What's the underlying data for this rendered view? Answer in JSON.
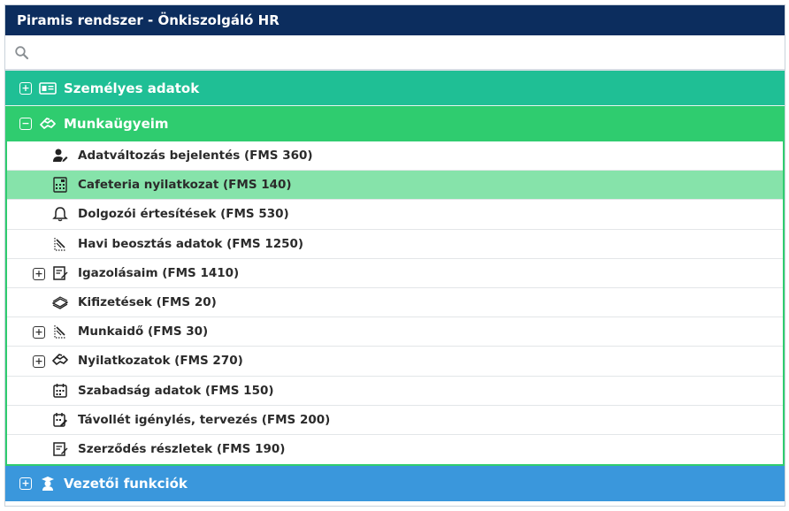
{
  "app": {
    "title": "Piramis rendszer - Önkiszolgáló HR"
  },
  "search": {
    "placeholder": ""
  },
  "groups": [
    {
      "label": "Személyes adatok",
      "toggle": "+",
      "icon": "id-card-icon"
    },
    {
      "label": "Munkaügyeim",
      "toggle": "−",
      "icon": "handshake-icon"
    },
    {
      "label": "Vezetői funkciók",
      "toggle": "+",
      "icon": "manager-icon"
    }
  ],
  "items": [
    {
      "label": "Adatváltozás bejelentés (FMS 360)",
      "icon": "user-edit-icon"
    },
    {
      "label": "Cafeteria nyilatkozat (FMS 140)",
      "icon": "calculator-icon",
      "selected": true
    },
    {
      "label": "Dolgozói értesítések (FMS 530)",
      "icon": "bell-icon"
    },
    {
      "label": "Havi beosztás adatok (FMS 1250)",
      "icon": "schedule-icon"
    },
    {
      "label": "Igazolásaim (FMS 1410)",
      "icon": "certificate-icon",
      "toggle": "+"
    },
    {
      "label": "Kifizetések (FMS 20)",
      "icon": "money-icon"
    },
    {
      "label": "Munkaidő (FMS 30)",
      "icon": "schedule-icon",
      "toggle": "+"
    },
    {
      "label": "Nyilatkozatok (FMS 270)",
      "icon": "handshake-icon",
      "toggle": "+"
    },
    {
      "label": "Szabadság adatok (FMS 150)",
      "icon": "calendar-icon"
    },
    {
      "label": "Távollét igénylés, tervezés (FMS 200)",
      "icon": "calendar-edit-icon"
    },
    {
      "label": "Szerződés részletek (FMS 190)",
      "icon": "contract-icon"
    }
  ],
  "colors": {
    "titlebar": "#0c2d5e",
    "group_teal": "#1fbf95",
    "group_green": "#2fcc6f",
    "group_blue": "#3a97dc",
    "selected_row": "#86e3aa"
  }
}
